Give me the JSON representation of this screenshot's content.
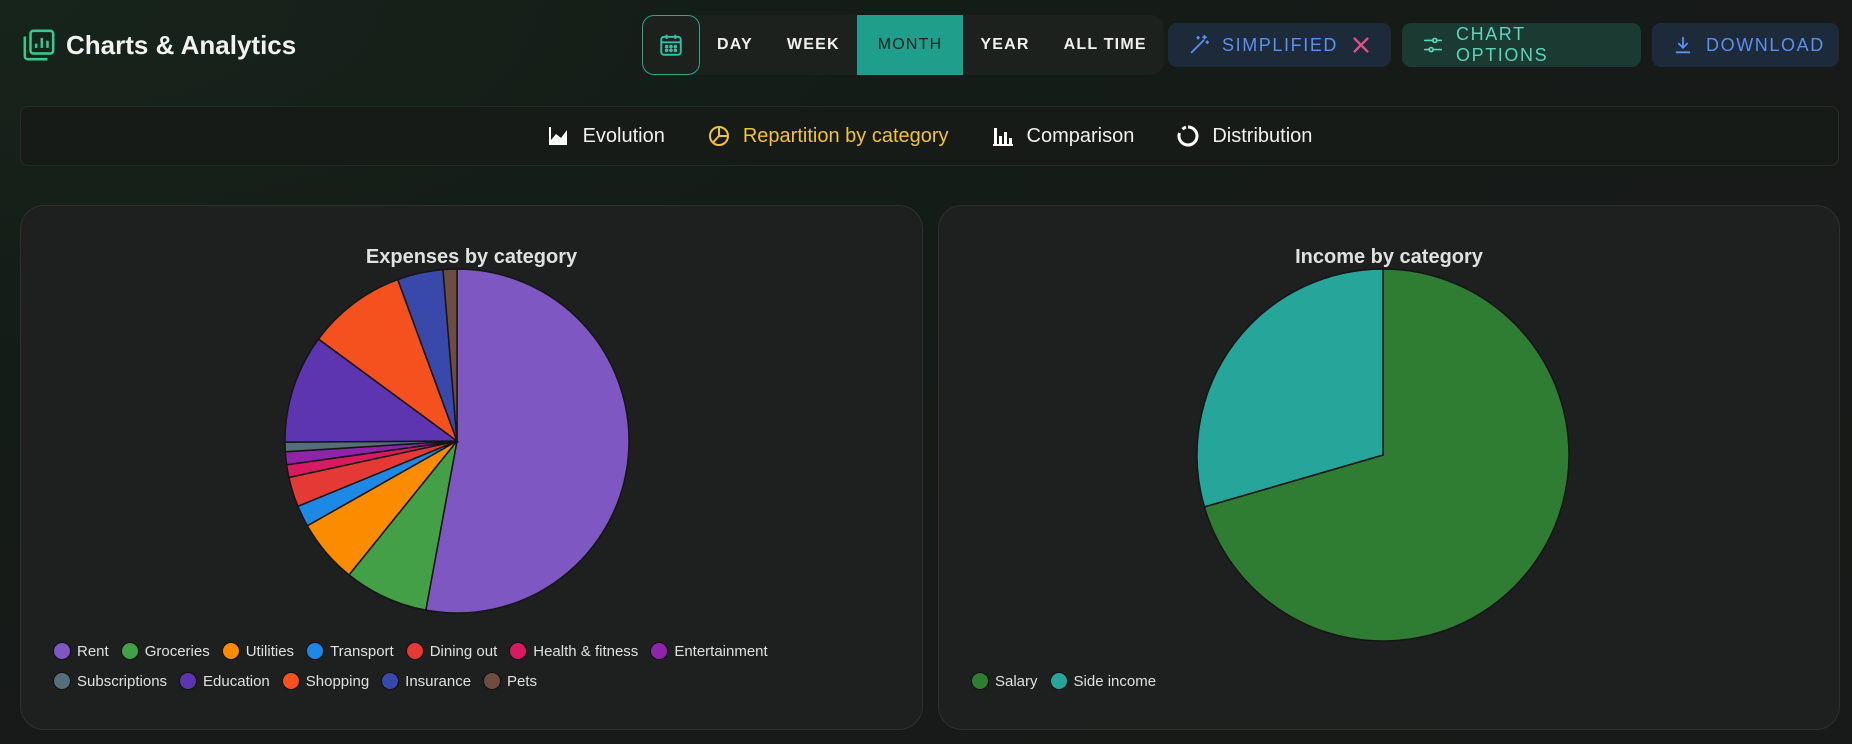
{
  "app": {
    "title": "Charts & Analytics"
  },
  "period": {
    "items": [
      "DAY",
      "WEEK",
      "MONTH",
      "YEAR",
      "ALL TIME"
    ],
    "active": "MONTH"
  },
  "actions": {
    "simplified": "SIMPLIFIED",
    "chart_options": "CHART OPTIONS",
    "download": "DOWNLOAD"
  },
  "tabs": [
    {
      "label": "Evolution",
      "icon": "area-chart-icon"
    },
    {
      "label": "Repartition by category",
      "icon": "pie-chart-icon",
      "active": true
    },
    {
      "label": "Comparison",
      "icon": "bar-chart-icon"
    },
    {
      "label": "Distribution",
      "icon": "donut-chart-icon"
    }
  ],
  "colors": {
    "accent": "#1f9e8c",
    "active_tab": "#f2c335",
    "link_blue": "#5b8ff0",
    "close_pink": "#e0508a"
  },
  "chart_data": [
    {
      "type": "pie",
      "title": "Expenses by category",
      "categories": [
        "Rent",
        "Groceries",
        "Utilities",
        "Transport",
        "Dining out",
        "Health & fitness",
        "Entertainment",
        "Subscriptions",
        "Education",
        "Shopping",
        "Insurance",
        "Pets"
      ],
      "values": [
        52.9,
        7.9,
        6.0,
        2.0,
        2.8,
        1.2,
        1.2,
        0.9,
        10.2,
        9.3,
        4.3,
        1.3
      ],
      "colors": [
        "#7e57c2",
        "#43a047",
        "#fb8c00",
        "#1e88e5",
        "#e53935",
        "#d81b60",
        "#8e24aa",
        "#546e7a",
        "#5e35b1",
        "#f4511e",
        "#3949ab",
        "#6d4c41"
      ],
      "legend_position": "bottom-left"
    },
    {
      "type": "pie",
      "title": "Income by category",
      "categories": [
        "Salary",
        "Side income"
      ],
      "values": [
        70.5,
        29.5
      ],
      "colors": [
        "#2e7d32",
        "#26a69a"
      ],
      "legend_position": "bottom-left"
    }
  ]
}
